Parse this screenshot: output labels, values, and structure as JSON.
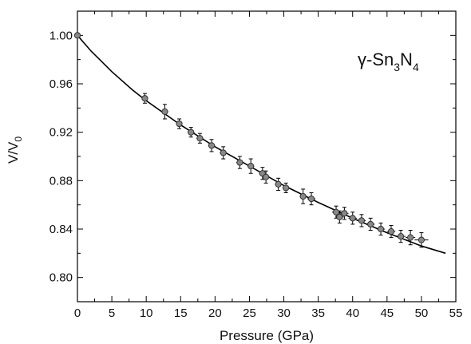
{
  "chart_data": {
    "type": "scatter",
    "title": "",
    "xlabel": "Pressure (GPa)",
    "ylabel_main": "V/V",
    "ylabel_sub": "0",
    "xlim": [
      0,
      55
    ],
    "ylim": [
      0.78,
      1.02
    ],
    "x_ticks": [
      0,
      5,
      10,
      15,
      20,
      25,
      30,
      35,
      40,
      45,
      50,
      55
    ],
    "y_ticks": [
      0.8,
      0.84,
      0.88,
      0.92,
      0.96,
      1.0
    ],
    "x_tick_labels": [
      "0",
      "5",
      "10",
      "15",
      "20",
      "25",
      "30",
      "35",
      "40",
      "45",
      "50",
      "55"
    ],
    "y_tick_labels": [
      "0.80",
      "0.84",
      "0.88",
      "0.92",
      "0.96",
      "1.00"
    ],
    "grid": false,
    "annotation": {
      "parts": [
        {
          "text": "γ-Sn",
          "sub": false
        },
        {
          "text": "3",
          "sub": true
        },
        {
          "text": "N",
          "sub": false
        },
        {
          "text": "4",
          "sub": true
        }
      ]
    },
    "series": [
      {
        "marker": "circle",
        "marker_color": "#888888",
        "points": [
          {
            "x": 0.0,
            "y": 1.0,
            "yerr": 0.0,
            "xerr": 0.0
          },
          {
            "x": 9.8,
            "y": 0.948,
            "yerr": 0.004,
            "xerr": 0.4
          },
          {
            "x": 12.7,
            "y": 0.937,
            "yerr": 0.006,
            "xerr": 0.5
          },
          {
            "x": 14.8,
            "y": 0.927,
            "yerr": 0.004,
            "xerr": 0.4
          },
          {
            "x": 16.5,
            "y": 0.92,
            "yerr": 0.004,
            "xerr": 0.5
          },
          {
            "x": 17.8,
            "y": 0.915,
            "yerr": 0.004,
            "xerr": 0.5
          },
          {
            "x": 19.5,
            "y": 0.909,
            "yerr": 0.005,
            "xerr": 0.5
          },
          {
            "x": 21.2,
            "y": 0.903,
            "yerr": 0.005,
            "xerr": 0.5
          },
          {
            "x": 23.6,
            "y": 0.895,
            "yerr": 0.005,
            "xerr": 0.5
          },
          {
            "x": 25.2,
            "y": 0.892,
            "yerr": 0.006,
            "xerr": 0.5
          },
          {
            "x": 26.9,
            "y": 0.886,
            "yerr": 0.005,
            "xerr": 0.5
          },
          {
            "x": 27.4,
            "y": 0.883,
            "yerr": 0.005,
            "xerr": 0.5
          },
          {
            "x": 29.2,
            "y": 0.877,
            "yerr": 0.005,
            "xerr": 0.5
          },
          {
            "x": 30.3,
            "y": 0.874,
            "yerr": 0.004,
            "xerr": 0.5
          },
          {
            "x": 32.8,
            "y": 0.867,
            "yerr": 0.006,
            "xerr": 0.5
          },
          {
            "x": 34.0,
            "y": 0.865,
            "yerr": 0.005,
            "xerr": 0.6
          },
          {
            "x": 37.6,
            "y": 0.854,
            "yerr": 0.005,
            "xerr": 0.6
          },
          {
            "x": 38.1,
            "y": 0.85,
            "yerr": 0.005,
            "xerr": 0.6
          },
          {
            "x": 38.8,
            "y": 0.853,
            "yerr": 0.005,
            "xerr": 0.6
          },
          {
            "x": 40.0,
            "y": 0.849,
            "yerr": 0.005,
            "xerr": 0.6
          },
          {
            "x": 41.3,
            "y": 0.847,
            "yerr": 0.005,
            "xerr": 0.6
          },
          {
            "x": 42.6,
            "y": 0.844,
            "yerr": 0.005,
            "xerr": 0.6
          },
          {
            "x": 44.1,
            "y": 0.84,
            "yerr": 0.005,
            "xerr": 0.6
          },
          {
            "x": 45.6,
            "y": 0.838,
            "yerr": 0.005,
            "xerr": 0.6
          },
          {
            "x": 47.0,
            "y": 0.834,
            "yerr": 0.005,
            "xerr": 0.7
          },
          {
            "x": 48.4,
            "y": 0.833,
            "yerr": 0.006,
            "xerr": 0.7
          },
          {
            "x": 50.0,
            "y": 0.831,
            "yerr": 0.006,
            "xerr": 1.0
          }
        ]
      },
      {
        "line": true,
        "line_color": "#000000",
        "points": [
          {
            "x": 0.0,
            "y": 1.0
          },
          {
            "x": 2.0,
            "y": 0.987
          },
          {
            "x": 5.0,
            "y": 0.97
          },
          {
            "x": 8.0,
            "y": 0.955
          },
          {
            "x": 10.0,
            "y": 0.946
          },
          {
            "x": 15.0,
            "y": 0.926
          },
          {
            "x": 20.0,
            "y": 0.908
          },
          {
            "x": 25.0,
            "y": 0.892
          },
          {
            "x": 30.0,
            "y": 0.876
          },
          {
            "x": 35.0,
            "y": 0.862
          },
          {
            "x": 40.0,
            "y": 0.849
          },
          {
            "x": 45.0,
            "y": 0.837
          },
          {
            "x": 50.0,
            "y": 0.826
          },
          {
            "x": 53.5,
            "y": 0.82
          }
        ]
      }
    ]
  }
}
